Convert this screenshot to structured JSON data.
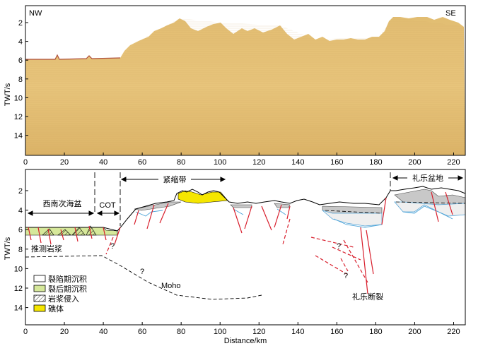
{
  "top_panel": {
    "corner_left": "NW",
    "corner_right": "SE",
    "y_axis_label": "TWT/s",
    "y_ticks": [
      "2",
      "4",
      "6",
      "8",
      "10",
      "12",
      "14"
    ],
    "x_ticks": [
      "0",
      "20",
      "40",
      "60",
      "80",
      "100",
      "120",
      "140",
      "160",
      "180",
      "200",
      "220"
    ],
    "colors": {
      "seismic_fill": "#e6be6e",
      "seafloor": "#b0503a"
    }
  },
  "bottom_panel": {
    "y_axis_label": "TWT/s",
    "x_axis_label": "Distance/km",
    "y_ticks": [
      "2",
      "4",
      "6",
      "8",
      "10",
      "12",
      "14"
    ],
    "x_ticks": [
      "0",
      "20",
      "40",
      "60",
      "80",
      "100",
      "120",
      "140",
      "160",
      "180",
      "200",
      "220"
    ],
    "region_labels": {
      "xinan": "西南次海盆",
      "cot": "COT",
      "jinsuo": "紧缩带",
      "liyue_basin": "礼乐盆地"
    },
    "annotations": {
      "magma": "推测岩浆",
      "moho": "Moho",
      "fault": "礼乐断裂",
      "question": "?"
    },
    "legend": [
      {
        "label": "裂陷期沉积",
        "swatch": "syn-rift"
      },
      {
        "label": "裂后期沉积",
        "swatch": "post-rift"
      },
      {
        "label": "岩浆侵入",
        "swatch": "intrusion"
      },
      {
        "label": "礁体",
        "swatch": "reef"
      }
    ],
    "colors": {
      "syn_rift": "#efefef",
      "post_rift": "#d6e89a",
      "reef": "#f5e600",
      "fault": "#d81e2c",
      "basement_blue": "#4aa3d8",
      "sediment_gray": "#bdbdbd"
    }
  }
}
